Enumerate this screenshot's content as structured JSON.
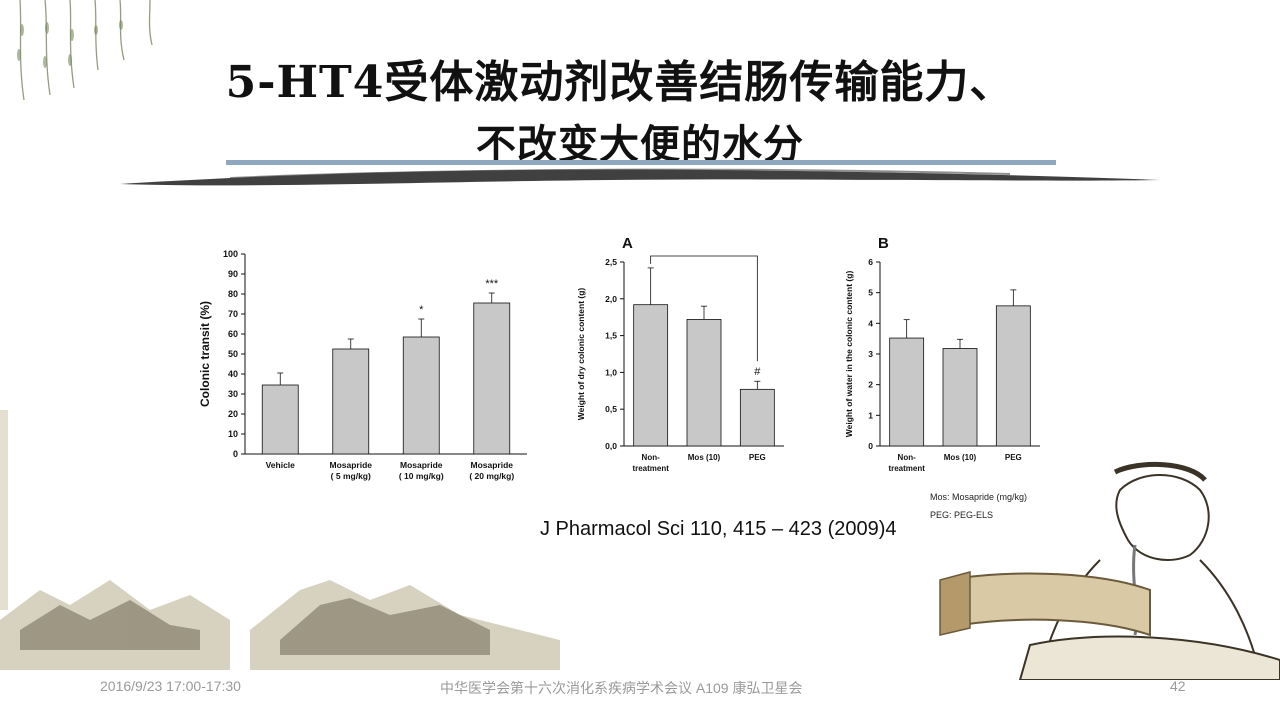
{
  "title": {
    "line1": "5-HT4受体激动剂改善结肠传输能力、",
    "line2": "不改变大便的水分"
  },
  "citation": "J Pharmacol Sci 110, 415 – 423 (2009)4",
  "footer": {
    "date": "2016/9/23 17:00-17:30",
    "event": "中华医学会第十六次消化系疾病学术会议 A109 康弘卫星会",
    "page": "42"
  },
  "legend": {
    "line1": "Mos: Mosapride (mg/kg)",
    "line2": "PEG: PEG-ELS"
  },
  "colors": {
    "bar": "#c8c8c8",
    "rule": "#8fa8c0",
    "ink": "#222222"
  },
  "chart_data": [
    {
      "type": "bar",
      "panel_label": "",
      "categories": [
        [
          "Vehicle"
        ],
        [
          "Mosapride",
          "( 5 mg/kg)"
        ],
        [
          "Mosapride",
          "( 10 mg/kg)"
        ],
        [
          "Mosapride",
          "( 20 mg/kg)"
        ]
      ],
      "values": [
        34.5,
        52.5,
        58.5,
        75.5
      ],
      "errors": [
        6,
        5,
        9,
        5
      ],
      "annotations": [
        "",
        "",
        "*",
        "***"
      ],
      "ylabel": "Colonic transit (%)",
      "ylim": [
        0,
        100
      ],
      "yticks": [
        "0",
        "10",
        "20",
        "30",
        "40",
        "50",
        "60",
        "70",
        "80",
        "90",
        "100"
      ]
    },
    {
      "type": "bar",
      "panel_label": "A",
      "categories": [
        [
          "Non-",
          "treatment"
        ],
        [
          "Mos (10)"
        ],
        [
          "PEG"
        ]
      ],
      "values": [
        1.92,
        1.72,
        0.77
      ],
      "errors": [
        0.5,
        0.18,
        0.11
      ],
      "annotations": [
        "",
        "",
        "#"
      ],
      "bracket": [
        0,
        2
      ],
      "ylabel": "Weight of dry colonic content (g)",
      "ylim": [
        0,
        2.5
      ],
      "yticks": [
        "0,0",
        "0,5",
        "1,0",
        "1,5",
        "2,0",
        "2,5"
      ]
    },
    {
      "type": "bar",
      "panel_label": "B",
      "categories": [
        [
          "Non-",
          "treatment"
        ],
        [
          "Mos (10)"
        ],
        [
          "PEG"
        ]
      ],
      "values": [
        3.52,
        3.18,
        4.57
      ],
      "errors": [
        0.6,
        0.3,
        0.52
      ],
      "annotations": [
        "",
        "",
        ""
      ],
      "ylabel": "Weight of water in the colonic content (g)",
      "ylim": [
        0,
        6
      ],
      "yticks": [
        "0",
        "1",
        "2",
        "3",
        "4",
        "5",
        "6"
      ]
    }
  ]
}
